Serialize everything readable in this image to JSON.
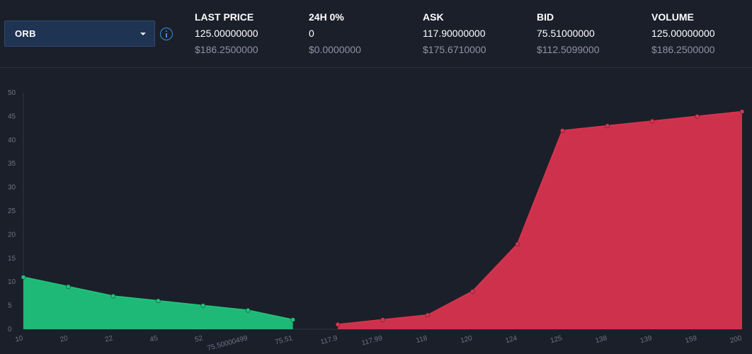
{
  "selector": {
    "value": "ORB"
  },
  "stats": [
    {
      "label": "LAST PRICE",
      "value": "125.00000000",
      "fiat": "$186.2500000"
    },
    {
      "label": "24H 0%",
      "value": "0",
      "fiat": "$0.0000000"
    },
    {
      "label": "ASK",
      "value": "117.90000000",
      "fiat": "$175.6710000"
    },
    {
      "label": "BID",
      "value": "75.51000000",
      "fiat": "$112.5099000"
    },
    {
      "label": "VOLUME",
      "value": "125.00000000",
      "fiat": "$186.2500000"
    }
  ],
  "chart_data": {
    "type": "area",
    "ylim": [
      0,
      50
    ],
    "yticks": [
      0,
      5,
      10,
      15,
      20,
      25,
      30,
      35,
      40,
      45,
      50
    ],
    "categories": [
      "10",
      "20",
      "22",
      "45",
      "52",
      "75.50000499",
      "75.51",
      "117.9",
      "117.99",
      "118",
      "120",
      "124",
      "125",
      "138",
      "139",
      "159",
      "200"
    ],
    "series": [
      {
        "side": "bid",
        "color": "#1fc27a",
        "points": [
          {
            "x": "10",
            "y": 11
          },
          {
            "x": "20",
            "y": 9
          },
          {
            "x": "22",
            "y": 7
          },
          {
            "x": "45",
            "y": 6
          },
          {
            "x": "52",
            "y": 5
          },
          {
            "x": "75.50000499",
            "y": 4
          },
          {
            "x": "75.51",
            "y": 2
          }
        ]
      },
      {
        "side": "ask",
        "color": "#d8334e",
        "points": [
          {
            "x": "117.9",
            "y": 1
          },
          {
            "x": "117.99",
            "y": 2
          },
          {
            "x": "118",
            "y": 3
          },
          {
            "x": "120",
            "y": 8
          },
          {
            "x": "124",
            "y": 18
          },
          {
            "x": "125",
            "y": 42
          },
          {
            "x": "138",
            "y": 43
          },
          {
            "x": "139",
            "y": 44
          },
          {
            "x": "159",
            "y": 45
          },
          {
            "x": "200",
            "y": 46
          }
        ]
      }
    ]
  }
}
